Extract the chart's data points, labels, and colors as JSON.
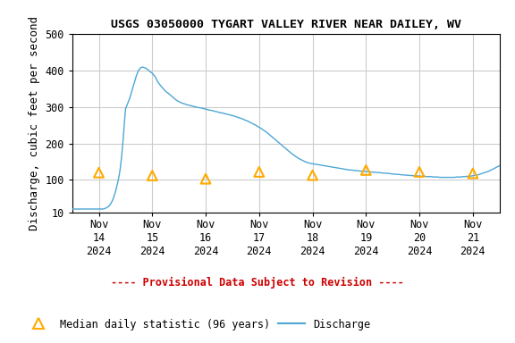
{
  "title": "USGS 03050000 TYGART VALLEY RIVER NEAR DAILEY, WV",
  "ylabel": "Discharge, cubic feet per second",
  "xlim_days": [
    0,
    8
  ],
  "ylim": [
    10,
    500
  ],
  "yticks": [
    10,
    100,
    200,
    300,
    400,
    500
  ],
  "x_tick_labels": [
    [
      "Nov\n14\n2024",
      0.5
    ],
    [
      "Nov\n15\n2024",
      1.5
    ],
    [
      "Nov\n16\n2024",
      2.5
    ],
    [
      "Nov\n17\n2024",
      3.5
    ],
    [
      "Nov\n18\n2024",
      4.5
    ],
    [
      "Nov\n19\n2024",
      5.5
    ],
    [
      "Nov\n20\n2024",
      6.5
    ],
    [
      "Nov\n21\n2024",
      7.5
    ]
  ],
  "discharge_x": [
    0.0,
    0.02,
    0.04,
    0.06,
    0.08,
    0.1,
    0.12,
    0.14,
    0.16,
    0.18,
    0.2,
    0.22,
    0.24,
    0.26,
    0.28,
    0.3,
    0.32,
    0.34,
    0.36,
    0.38,
    0.4,
    0.42,
    0.44,
    0.46,
    0.48,
    0.5,
    0.52,
    0.54,
    0.56,
    0.58,
    0.6,
    0.62,
    0.64,
    0.66,
    0.68,
    0.7,
    0.72,
    0.74,
    0.76,
    0.78,
    0.8,
    0.82,
    0.84,
    0.86,
    0.88,
    0.9,
    0.92,
    0.94,
    0.96,
    0.98,
    1.0,
    1.04,
    1.08,
    1.12,
    1.16,
    1.2,
    1.24,
    1.28,
    1.32,
    1.36,
    1.4,
    1.44,
    1.48,
    1.5,
    1.52,
    1.56,
    1.6,
    1.64,
    1.68,
    1.72,
    1.76,
    1.8,
    1.84,
    1.88,
    1.92,
    1.96,
    2.0,
    2.04,
    2.08,
    2.12,
    2.16,
    2.2,
    2.24,
    2.28,
    2.32,
    2.36,
    2.4,
    2.44,
    2.48,
    2.52,
    2.56,
    2.6,
    2.64,
    2.68,
    2.72,
    2.76,
    2.8,
    2.84,
    2.88,
    2.92,
    2.96,
    3.0,
    3.04,
    3.08,
    3.12,
    3.16,
    3.2,
    3.24,
    3.28,
    3.32,
    3.36,
    3.4,
    3.44,
    3.48,
    3.52,
    3.56,
    3.6,
    3.64,
    3.68,
    3.72,
    3.76,
    3.8,
    3.84,
    3.88,
    3.92,
    3.96,
    4.0,
    4.04,
    4.08,
    4.12,
    4.16,
    4.2,
    4.24,
    4.28,
    4.32,
    4.36,
    4.4,
    4.44,
    4.48,
    4.52,
    4.56,
    4.6,
    4.64,
    4.68,
    4.72,
    4.76,
    4.8,
    4.84,
    4.88,
    4.92,
    4.96,
    5.0,
    5.04,
    5.08,
    5.12,
    5.16,
    5.2,
    5.24,
    5.28,
    5.32,
    5.36,
    5.4,
    5.44,
    5.48,
    5.52,
    5.56,
    5.6,
    5.64,
    5.68,
    5.72,
    5.76,
    5.8,
    5.84,
    5.88,
    5.92,
    5.96,
    6.0,
    6.04,
    6.08,
    6.12,
    6.16,
    6.2,
    6.24,
    6.28,
    6.32,
    6.36,
    6.4,
    6.44,
    6.48,
    6.52,
    6.56,
    6.6,
    6.64,
    6.68,
    6.72,
    6.76,
    6.8,
    6.84,
    6.88,
    6.92,
    6.96,
    7.0,
    7.04,
    7.08,
    7.12,
    7.16,
    7.2,
    7.24,
    7.28,
    7.32,
    7.36,
    7.4,
    7.44,
    7.48,
    7.52,
    7.56,
    7.6,
    7.64,
    7.68,
    7.72,
    7.76,
    7.8,
    7.84,
    7.88,
    7.92,
    7.96,
    8.0
  ],
  "discharge_y": [
    20,
    20,
    20,
    20,
    20,
    20,
    20,
    20,
    20,
    20,
    20,
    20,
    20,
    20,
    20,
    20,
    20,
    20,
    20,
    20,
    20,
    20,
    20,
    20,
    20,
    20,
    20,
    20,
    20,
    20,
    21,
    22,
    23,
    25,
    27,
    30,
    34,
    39,
    45,
    53,
    62,
    72,
    84,
    97,
    112,
    130,
    155,
    185,
    220,
    260,
    295,
    310,
    325,
    345,
    365,
    385,
    400,
    408,
    410,
    408,
    405,
    400,
    395,
    393,
    390,
    382,
    370,
    362,
    355,
    348,
    342,
    338,
    333,
    328,
    323,
    318,
    315,
    312,
    310,
    308,
    306,
    305,
    303,
    302,
    300,
    299,
    298,
    297,
    295,
    294,
    292,
    291,
    290,
    288,
    287,
    285,
    284,
    283,
    281,
    280,
    278,
    277,
    275,
    273,
    271,
    269,
    267,
    264,
    262,
    259,
    256,
    253,
    250,
    246,
    243,
    239,
    235,
    231,
    226,
    221,
    216,
    211,
    206,
    201,
    196,
    191,
    186,
    181,
    176,
    171,
    167,
    163,
    159,
    156,
    153,
    150,
    148,
    146,
    145,
    144,
    143,
    142,
    141,
    140,
    139,
    138,
    137,
    136,
    135,
    134,
    133,
    132,
    131,
    130,
    129,
    128,
    127,
    127,
    126,
    125,
    125,
    124,
    124,
    123,
    123,
    122,
    122,
    121,
    121,
    120,
    120,
    119,
    119,
    118,
    118,
    117,
    116,
    116,
    115,
    115,
    114,
    114,
    113,
    113,
    112,
    112,
    111,
    111,
    111,
    110,
    110,
    110,
    109,
    109,
    109,
    108,
    108,
    108,
    107,
    107,
    107,
    107,
    107,
    107,
    107,
    107,
    108,
    108,
    108,
    109,
    109,
    110,
    110,
    111,
    112,
    113,
    114,
    116,
    118,
    120,
    122,
    124,
    127,
    130,
    133,
    136,
    139
  ],
  "median_x": [
    0.5,
    1.5,
    2.5,
    3.5,
    4.5,
    5.5,
    6.5,
    7.5
  ],
  "median_y": [
    120,
    112,
    103,
    122,
    113,
    127,
    122,
    118
  ],
  "line_color": "#4da6d4",
  "median_color": "#ffaa00",
  "grid_color": "#cccccc",
  "bg_color": "#ffffff",
  "provisional_text": "---- Provisional Data Subject to Revision ----",
  "provisional_color": "#cc0000",
  "legend_triangle_label": "Median daily statistic (96 years)",
  "legend_line_label": "Discharge",
  "title_fontsize": 9.5,
  "label_fontsize": 9,
  "tick_fontsize": 8.5
}
